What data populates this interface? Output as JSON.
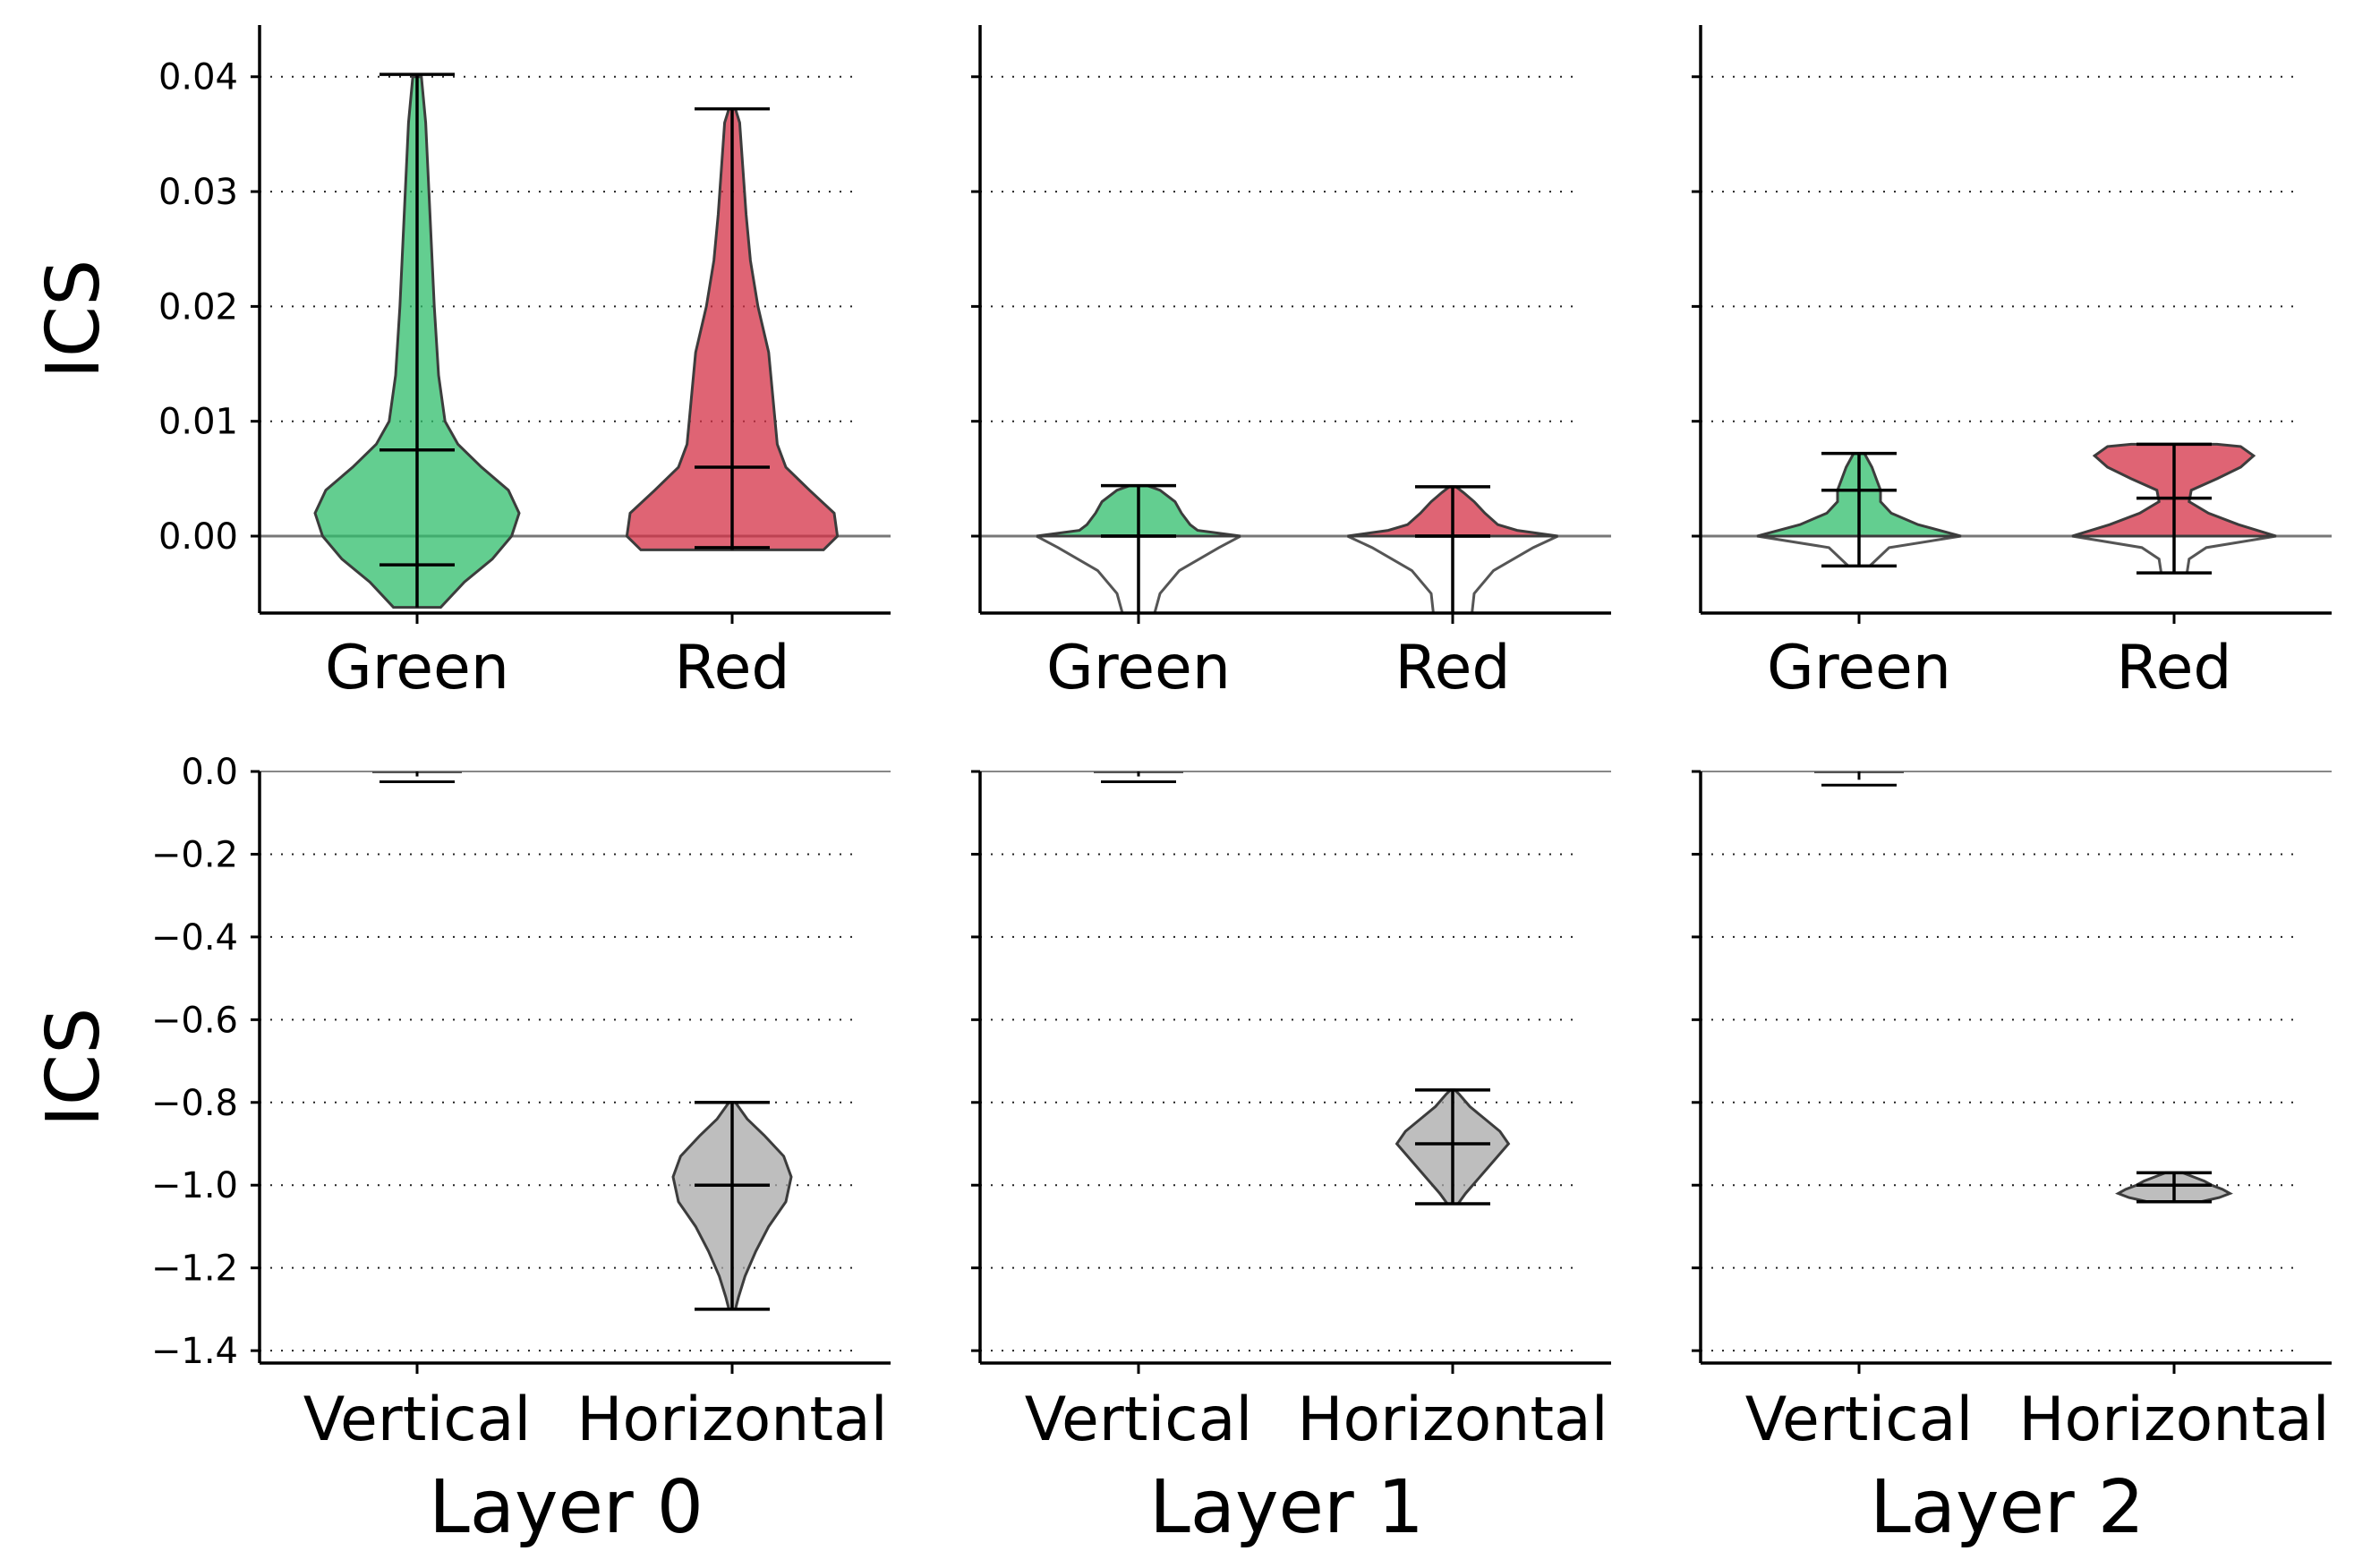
{
  "colors": {
    "green": "#2fbd6b",
    "red": "#d43045",
    "gray": "#a8a8a8",
    "outline": "#3c3c3c"
  },
  "chart_data": [
    {
      "type": "violin",
      "row": 0,
      "col": 0,
      "xlabel": "",
      "ylabel": "ICS",
      "ylim": [
        -0.0067,
        0.0445
      ],
      "yticks": [
        "0.00",
        "0.01",
        "0.02",
        "0.03",
        "0.04"
      ],
      "ytick_values": [
        0,
        0.01,
        0.02,
        0.03,
        0.04
      ],
      "grid": "y-dotted",
      "categories": [
        "Green",
        "Red"
      ],
      "violins": [
        {
          "category": "Green",
          "color": "green",
          "min": -0.0062,
          "max": 0.0402,
          "median": 0.0075,
          "whisker": -0.0025,
          "upper_only": false,
          "profile": [
            [
              -0.0062,
              0.22
            ],
            [
              -0.004,
              0.44
            ],
            [
              -0.002,
              0.7
            ],
            [
              0,
              0.88
            ],
            [
              0.002,
              0.95
            ],
            [
              0.004,
              0.85
            ],
            [
              0.006,
              0.6
            ],
            [
              0.008,
              0.38
            ],
            [
              0.01,
              0.26
            ],
            [
              0.014,
              0.2
            ],
            [
              0.02,
              0.16
            ],
            [
              0.026,
              0.13
            ],
            [
              0.032,
              0.1
            ],
            [
              0.036,
              0.08
            ],
            [
              0.04,
              0.04
            ]
          ]
        },
        {
          "category": "Red",
          "color": "red",
          "min": -0.0012,
          "max": 0.0372,
          "median": 0.006,
          "whisker": -0.001,
          "upper_only": false,
          "profile": [
            [
              -0.0012,
              0.85
            ],
            [
              0,
              0.98
            ],
            [
              0.002,
              0.95
            ],
            [
              0.004,
              0.72
            ],
            [
              0.006,
              0.5
            ],
            [
              0.008,
              0.42
            ],
            [
              0.012,
              0.38
            ],
            [
              0.016,
              0.34
            ],
            [
              0.02,
              0.24
            ],
            [
              0.024,
              0.17
            ],
            [
              0.028,
              0.13
            ],
            [
              0.032,
              0.1
            ],
            [
              0.036,
              0.07
            ],
            [
              0.0372,
              0.03
            ]
          ]
        }
      ]
    },
    {
      "type": "violin",
      "row": 0,
      "col": 1,
      "xlabel": "",
      "ylim": [
        -0.0067,
        0.0445
      ],
      "yticks": [],
      "ytick_values": [
        0,
        0.01,
        0.02,
        0.03,
        0.04
      ],
      "grid": "y-dotted",
      "categories": [
        "Green",
        "Red"
      ],
      "violins": [
        {
          "category": "Green",
          "color": "green",
          "min": 0,
          "max": 0.0044,
          "median": 0.0,
          "whisker": 0.0,
          "upper_only": true,
          "profile": [
            [
              0,
              0.95
            ],
            [
              0.0005,
              0.55
            ],
            [
              0.001,
              0.48
            ],
            [
              0.002,
              0.4
            ],
            [
              0.003,
              0.34
            ],
            [
              0.004,
              0.2
            ],
            [
              0.0044,
              0.08
            ]
          ],
          "ghost": [
            [
              -0.0067,
              0.15
            ],
            [
              -0.005,
              0.2
            ],
            [
              -0.003,
              0.38
            ],
            [
              -0.001,
              0.75
            ],
            [
              0,
              0.95
            ]
          ]
        },
        {
          "category": "Red",
          "color": "red",
          "min": 0,
          "max": 0.0043,
          "median": 0.0,
          "whisker": 0.0,
          "upper_only": true,
          "profile": [
            [
              0,
              0.98
            ],
            [
              0.0005,
              0.6
            ],
            [
              0.001,
              0.42
            ],
            [
              0.002,
              0.3
            ],
            [
              0.003,
              0.2
            ],
            [
              0.0038,
              0.1
            ],
            [
              0.0043,
              0.03
            ]
          ],
          "ghost": [
            [
              -0.0067,
              0.18
            ],
            [
              -0.005,
              0.2
            ],
            [
              -0.003,
              0.38
            ],
            [
              -0.001,
              0.75
            ],
            [
              0,
              0.98
            ]
          ]
        }
      ]
    },
    {
      "type": "violin",
      "row": 0,
      "col": 2,
      "xlabel": "",
      "ylim": [
        -0.0067,
        0.0445
      ],
      "yticks": [],
      "ytick_values": [
        0,
        0.01,
        0.02,
        0.03,
        0.04
      ],
      "grid": "y-dotted",
      "categories": [
        "Green",
        "Red"
      ],
      "violins": [
        {
          "category": "Green",
          "color": "green",
          "min": 0,
          "max": 0.0072,
          "median": 0.004,
          "whisker": -0.0026,
          "upper_only": true,
          "profile": [
            [
              0,
              0.95
            ],
            [
              0.001,
              0.55
            ],
            [
              0.002,
              0.3
            ],
            [
              0.003,
              0.2
            ],
            [
              0.004,
              0.2
            ],
            [
              0.005,
              0.16
            ],
            [
              0.006,
              0.12
            ],
            [
              0.0072,
              0.05
            ]
          ],
          "ghost": [
            [
              -0.0026,
              0.1
            ],
            [
              -0.001,
              0.28
            ],
            [
              0,
              0.95
            ]
          ]
        },
        {
          "category": "Red",
          "color": "red",
          "min": 0,
          "max": 0.008,
          "median": 0.0033,
          "whisker": -0.0032,
          "upper_only": true,
          "profile": [
            [
              0,
              0.95
            ],
            [
              0.001,
              0.6
            ],
            [
              0.002,
              0.32
            ],
            [
              0.003,
              0.14
            ],
            [
              0.004,
              0.16
            ],
            [
              0.005,
              0.4
            ],
            [
              0.006,
              0.62
            ],
            [
              0.007,
              0.74
            ],
            [
              0.0078,
              0.62
            ],
            [
              0.008,
              0.4
            ]
          ],
          "ghost": [
            [
              -0.0032,
              0.12
            ],
            [
              -0.002,
              0.14
            ],
            [
              -0.001,
              0.3
            ],
            [
              0,
              0.95
            ]
          ]
        }
      ]
    },
    {
      "type": "violin",
      "row": 1,
      "col": 0,
      "xlabel": "Layer 0",
      "ylabel": "ICS",
      "ylim": [
        -1.43,
        0.0
      ],
      "yticks": [
        "0.0",
        "−0.2",
        "−0.4",
        "−0.6",
        "−0.8",
        "−1.0",
        "−1.2",
        "−1.4"
      ],
      "ytick_values": [
        0,
        -0.2,
        -0.4,
        -0.6,
        -0.8,
        -1.0,
        -1.2,
        -1.4
      ],
      "grid": "y-dotted",
      "categories": [
        "Vertical",
        "Horizontal"
      ],
      "violins": [
        {
          "category": "Vertical",
          "color": "gray",
          "min": -0.012,
          "max": 0.0,
          "median": -0.005,
          "whisker": -0.012,
          "upper_only": false,
          "tiny": true,
          "profile": [
            [
              -0.012,
              0.1
            ],
            [
              -0.005,
              0.5
            ],
            [
              0,
              0.95
            ]
          ]
        },
        {
          "category": "Horizontal",
          "color": "gray",
          "min": -1.3,
          "max": -0.8,
          "median": -1.0,
          "whisker": -1.3,
          "upper_only": false,
          "profile": [
            [
              -1.3,
              0.03
            ],
            [
              -1.27,
              0.06
            ],
            [
              -1.22,
              0.12
            ],
            [
              -1.16,
              0.22
            ],
            [
              -1.1,
              0.34
            ],
            [
              -1.04,
              0.5
            ],
            [
              -0.98,
              0.55
            ],
            [
              -0.93,
              0.48
            ],
            [
              -0.88,
              0.3
            ],
            [
              -0.84,
              0.14
            ],
            [
              -0.8,
              0.03
            ]
          ]
        }
      ]
    },
    {
      "type": "violin",
      "row": 1,
      "col": 1,
      "xlabel": "Layer 1",
      "ylim": [
        -1.43,
        0.0
      ],
      "yticks": [],
      "ytick_values": [
        0,
        -0.2,
        -0.4,
        -0.6,
        -0.8,
        -1.0,
        -1.2,
        -1.4
      ],
      "grid": "y-dotted",
      "categories": [
        "Vertical",
        "Horizontal"
      ],
      "violins": [
        {
          "category": "Vertical",
          "color": "gray",
          "min": -0.012,
          "max": 0.0,
          "median": -0.005,
          "whisker": -0.012,
          "upper_only": false,
          "tiny": true,
          "profile": [
            [
              -0.012,
              0.1
            ],
            [
              -0.005,
              0.5
            ],
            [
              0,
              0.95
            ]
          ]
        },
        {
          "category": "Horizontal",
          "color": "gray",
          "min": -1.045,
          "max": -0.77,
          "median": -0.9,
          "whisker": -1.045,
          "upper_only": false,
          "profile": [
            [
              -1.045,
              0.05
            ],
            [
              -1.02,
              0.12
            ],
            [
              -0.99,
              0.22
            ],
            [
              -0.96,
              0.32
            ],
            [
              -0.93,
              0.42
            ],
            [
              -0.9,
              0.52
            ],
            [
              -0.87,
              0.44
            ],
            [
              -0.84,
              0.3
            ],
            [
              -0.81,
              0.16
            ],
            [
              -0.78,
              0.06
            ],
            [
              -0.77,
              0.02
            ]
          ]
        }
      ]
    },
    {
      "type": "violin",
      "row": 1,
      "col": 2,
      "xlabel": "Layer 2",
      "ylim": [
        -1.43,
        0.0
      ],
      "yticks": [],
      "ytick_values": [
        0,
        -0.2,
        -0.4,
        -0.6,
        -0.8,
        -1.0,
        -1.2,
        -1.4
      ],
      "grid": "y-dotted",
      "categories": [
        "Vertical",
        "Horizontal"
      ],
      "violins": [
        {
          "category": "Vertical",
          "color": "gray",
          "min": -0.02,
          "max": 0.0,
          "median": -0.006,
          "whisker": -0.02,
          "upper_only": false,
          "tiny": true,
          "profile": [
            [
              -0.02,
              0.1
            ],
            [
              -0.006,
              0.5
            ],
            [
              0,
              0.95
            ]
          ]
        },
        {
          "category": "Horizontal",
          "color": "gray",
          "min": -1.04,
          "max": -0.97,
          "median": -1.0,
          "whisker": -1.04,
          "upper_only": false,
          "profile": [
            [
              -1.04,
              0.25
            ],
            [
              -1.03,
              0.42
            ],
            [
              -1.02,
              0.52
            ],
            [
              -1.01,
              0.45
            ],
            [
              -1.0,
              0.35
            ],
            [
              -0.99,
              0.28
            ],
            [
              -0.98,
              0.18
            ],
            [
              -0.97,
              0.08
            ]
          ]
        }
      ]
    }
  ]
}
